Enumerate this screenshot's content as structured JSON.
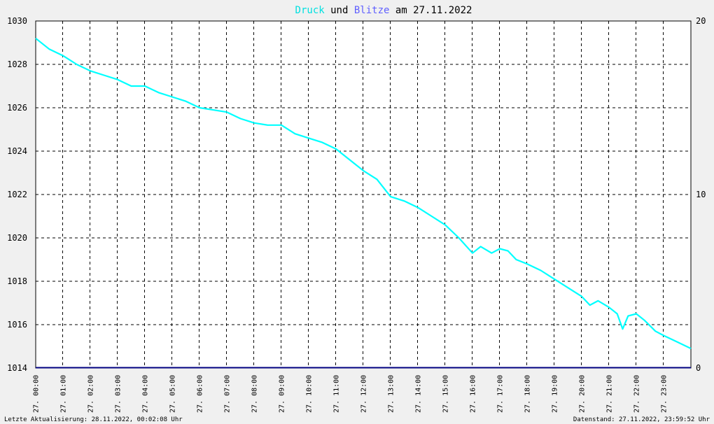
{
  "title": {
    "series1_word": "Druck",
    "connector": "und",
    "series2_word": "Blitze",
    "date_prefix": "am",
    "date": "27.11.2022"
  },
  "footer": {
    "last_update": "Letzte Aktualisierung: 28.11.2022, 00:02:08 Uhr",
    "data_status": "Datenstand: 27.11.2022, 23:59:52 Uhr"
  },
  "colors": {
    "background": "#f0f0f0",
    "plot_background": "#ffffff",
    "pressure": "#00ffff",
    "lightning": "#000080",
    "title_druck": "#00e0e0",
    "title_blitze": "#6060ff"
  },
  "chart_data": {
    "type": "line",
    "grid": true,
    "ylim_left": [
      1014,
      1030
    ],
    "ylim_right": [
      0,
      20
    ],
    "yticks_left": [
      "1014",
      "1016",
      "1018",
      "1020",
      "1022",
      "1024",
      "1026",
      "1028",
      "1030"
    ],
    "yticks_right": [
      "0",
      "10",
      "20"
    ],
    "x_hours": [
      0,
      24
    ],
    "categories": [
      "27. 00:00",
      "27. 01:00",
      "27. 02:00",
      "27. 03:00",
      "27. 04:00",
      "27. 05:00",
      "27. 06:00",
      "27. 07:00",
      "27. 08:00",
      "27. 09:00",
      "27. 10:00",
      "27. 11:00",
      "27. 12:00",
      "27. 13:00",
      "27. 14:00",
      "27. 15:00",
      "27. 16:00",
      "27. 17:00",
      "27. 18:00",
      "27. 19:00",
      "27. 20:00",
      "27. 21:00",
      "27. 22:00",
      "27. 23:00"
    ],
    "series": [
      {
        "name": "Druck",
        "axis": "left",
        "x": [
          0,
          0.5,
          1,
          1.5,
          2,
          2.5,
          3,
          3.5,
          4,
          4.5,
          5,
          5.5,
          6,
          6.5,
          7,
          7.5,
          8,
          8.5,
          9,
          9.5,
          10,
          10.5,
          11,
          11.5,
          12,
          12.5,
          13,
          13.5,
          14,
          14.5,
          15,
          15.5,
          16,
          16.3,
          16.7,
          17,
          17.3,
          17.6,
          18,
          18.5,
          19,
          19.5,
          20,
          20.3,
          20.6,
          21,
          21.3,
          21.5,
          21.7,
          22,
          22.3,
          22.7,
          23,
          23.5,
          24
        ],
        "values": [
          1029.2,
          1028.7,
          1028.4,
          1028.0,
          1027.7,
          1027.5,
          1027.3,
          1027.0,
          1027.0,
          1026.7,
          1026.5,
          1026.3,
          1026.0,
          1025.9,
          1025.8,
          1025.5,
          1025.3,
          1025.2,
          1025.2,
          1024.8,
          1024.6,
          1024.4,
          1024.1,
          1023.6,
          1023.1,
          1022.7,
          1021.9,
          1021.7,
          1021.4,
          1021.0,
          1020.6,
          1020.0,
          1019.3,
          1019.6,
          1019.3,
          1019.5,
          1019.4,
          1019.0,
          1018.8,
          1018.5,
          1018.1,
          1017.7,
          1017.3,
          1016.9,
          1017.1,
          1016.8,
          1016.5,
          1015.8,
          1016.4,
          1016.5,
          1016.2,
          1015.7,
          1015.5,
          1015.2,
          1014.9
        ]
      },
      {
        "name": "Blitze",
        "axis": "right",
        "x": [
          0,
          24
        ],
        "values": [
          0,
          0
        ]
      }
    ]
  }
}
